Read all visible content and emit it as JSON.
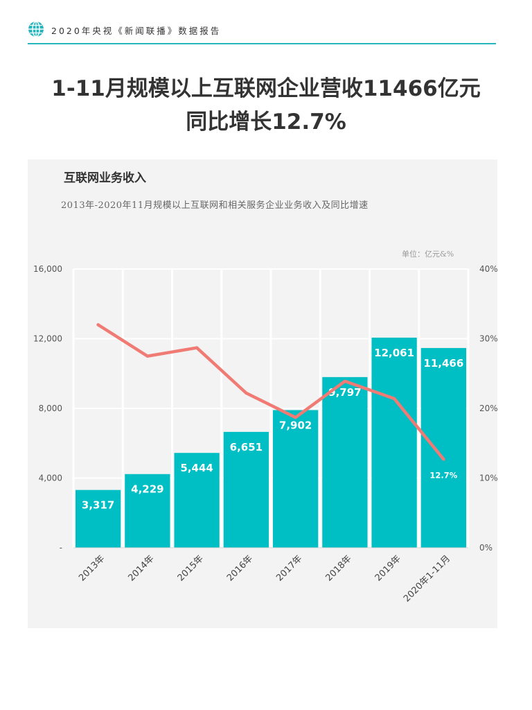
{
  "header": {
    "text": "2020年央视《新闻联播》数据报告",
    "icon": "globe-icon",
    "accent": "#26b5bd"
  },
  "headline": {
    "line1": "1-11月规模以上互联网企业营收11466亿元",
    "line2": "同比增长12.7%"
  },
  "chart_data": {
    "type": "bar",
    "title": "互联网业务收入",
    "subtitle": "2013年-2020年11月规模以上互联网和相关服务企业业务收入及同比增速",
    "unit": "单位：亿元&%",
    "categories": [
      "2013年",
      "2014年",
      "2015年",
      "2016年",
      "2017年",
      "2018年",
      "2019年",
      "2020年1-11月"
    ],
    "series": [
      {
        "type": "bar",
        "values": [
          3317,
          4229,
          5444,
          6651,
          7902,
          9797,
          12061,
          11466
        ],
        "labels": [
          "3,317",
          "4,229",
          "5,444",
          "6,651",
          "7,902",
          "9,797",
          "12,061",
          "11,466"
        ],
        "color": "#00bfc4",
        "axis": "left"
      },
      {
        "type": "line",
        "values": [
          32,
          27.5,
          28.7,
          22.2,
          18.7,
          23.9,
          21.4,
          12.7
        ],
        "color": "#f07a74",
        "axis": "right",
        "labelled_point": {
          "index": 7,
          "label": "12.7%"
        }
      }
    ],
    "y_left": {
      "min": 0,
      "max": 16000,
      "ticks": [
        "-",
        "4,000",
        "8,000",
        "12,000",
        "16,000"
      ]
    },
    "y_right": {
      "min": 0,
      "max": 40,
      "ticks": [
        "0%",
        "10%",
        "20%",
        "30%",
        "40%"
      ]
    },
    "grid": true
  }
}
